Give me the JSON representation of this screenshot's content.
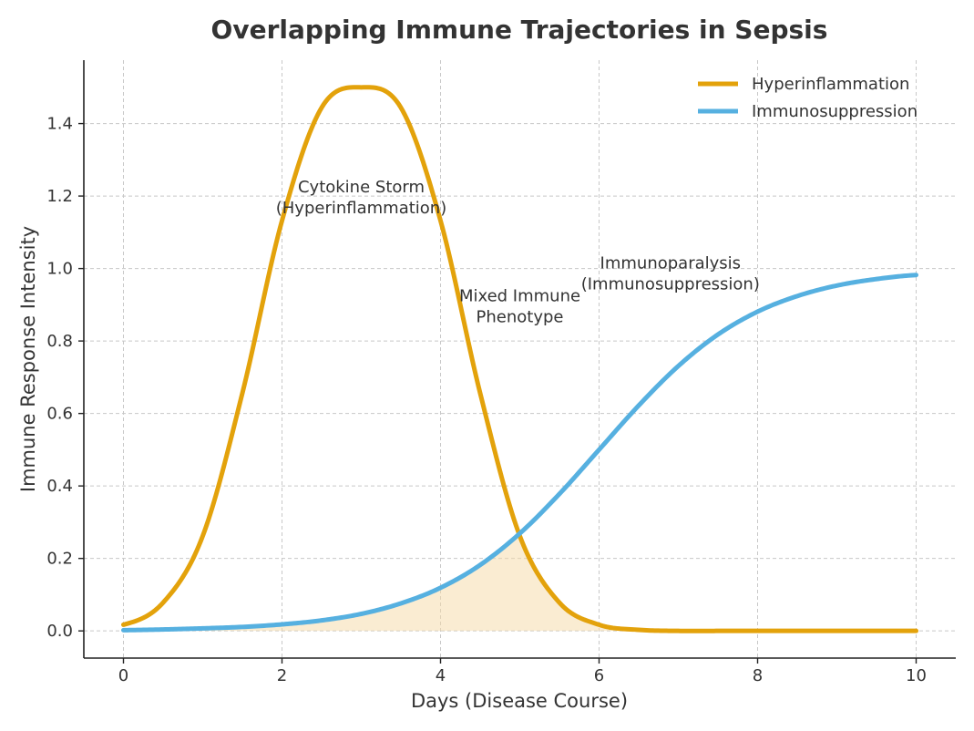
{
  "chart_data": {
    "type": "line",
    "title": "Overlapping Immune Trajectories in Sepsis",
    "xlabel": "Days (Disease Course)",
    "ylabel": "Immune Response Intensity",
    "xlim": [
      -0.5,
      10.5
    ],
    "ylim": [
      -0.075,
      1.575
    ],
    "xticks": [
      0,
      2,
      4,
      6,
      8,
      10
    ],
    "yticks": [
      0.0,
      0.2,
      0.4,
      0.6,
      0.8,
      1.0,
      1.2,
      1.4
    ],
    "xtick_labels": [
      "0",
      "2",
      "4",
      "6",
      "8",
      "10"
    ],
    "ytick_labels": [
      "0.0",
      "0.2",
      "0.4",
      "0.6",
      "0.8",
      "1.0",
      "1.2",
      "1.4"
    ],
    "grid": true,
    "legend_position": "top-right",
    "x": [
      0,
      0.5,
      1,
      1.5,
      2,
      2.5,
      3,
      3.5,
      4,
      4.5,
      5,
      5.5,
      6,
      6.5,
      7,
      7.5,
      8,
      8.5,
      9,
      9.5,
      10
    ],
    "series": [
      {
        "name": "Hyperinflammation",
        "color": "#E3A20B",
        "values": [
          0.017,
          0.078,
          0.262,
          0.656,
          1.132,
          1.444,
          1.5,
          1.444,
          1.132,
          0.656,
          0.262,
          0.078,
          0.017,
          0.003,
          0.0,
          0.0,
          0.0,
          0.0,
          0.0,
          0.0,
          0.0
        ]
      },
      {
        "name": "Immunosuppression",
        "color": "#56B0E0",
        "values": [
          0.002,
          0.004,
          0.007,
          0.011,
          0.018,
          0.029,
          0.047,
          0.076,
          0.119,
          0.182,
          0.269,
          0.378,
          0.5,
          0.622,
          0.731,
          0.818,
          0.881,
          0.924,
          0.953,
          0.971,
          0.982
        ]
      }
    ],
    "overlap_fill": {
      "from_series": [
        "Hyperinflammation",
        "Immunosuppression"
      ],
      "rule": "min",
      "xrange": [
        0,
        10
      ],
      "color": "#F5D9A6"
    },
    "annotations": [
      {
        "lines": [
          "Cytokine Storm",
          "(Hyperinflammation)"
        ],
        "x": 3.0,
        "y": 1.21
      },
      {
        "lines": [
          "Mixed Immune",
          "Phenotype"
        ],
        "x": 5.0,
        "y": 0.91
      },
      {
        "lines": [
          "Immunoparalysis",
          "(Immunosuppression)"
        ],
        "x": 6.9,
        "y": 1.0
      }
    ]
  }
}
